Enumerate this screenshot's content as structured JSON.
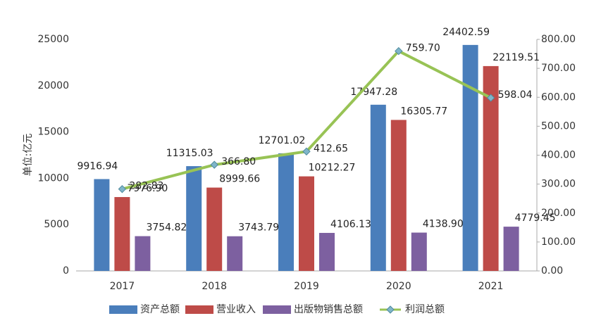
{
  "chart_data": {
    "type": "bar",
    "y_label": "单位:亿元",
    "categories": [
      "2017",
      "2018",
      "2019",
      "2020",
      "2021"
    ],
    "series": [
      {
        "name": "资产总额",
        "color": "#4a7ebb",
        "values": [
          9916.94,
          11315.03,
          12701.02,
          17947.28,
          24402.59
        ],
        "value_labels": [
          "9916.94",
          "11315.03",
          "12701.02",
          "17947.28",
          "24402.59"
        ]
      },
      {
        "name": "营业收入",
        "color": "#be4b48",
        "values": [
          7976.9,
          8999.66,
          10212.27,
          16305.77,
          22119.51
        ],
        "value_labels": [
          "7976.90",
          "8999.66",
          "10212.27",
          "16305.77",
          "22119.51"
        ]
      },
      {
        "name": "出版物销售总额",
        "color": "#7d60a0",
        "values": [
          3754.82,
          3743.79,
          4106.13,
          4138.9,
          4779.45
        ],
        "value_labels": [
          "3754.82",
          "3743.79",
          "4106.13",
          "4138.90",
          "4779.45"
        ]
      },
      {
        "name": "利润总额",
        "color": "#98c355",
        "type": "line",
        "axis": "y2",
        "values": [
          282.83,
          366.8,
          412.65,
          759.7,
          598.04
        ],
        "value_labels": [
          "282.83",
          "366.80",
          "412.65",
          "759.70",
          "598.04"
        ]
      }
    ],
    "ylim": [
      0,
      25000
    ],
    "yticks": [
      0,
      5000,
      10000,
      15000,
      20000,
      25000
    ],
    "y2lim": [
      0,
      800
    ],
    "y2ticks": [
      {
        "value": 0,
        "label": "0.00"
      },
      {
        "value": 100,
        "label": "100.00"
      },
      {
        "value": 200,
        "label": "200.00"
      },
      {
        "value": 300,
        "label": "300.00"
      },
      {
        "value": 400,
        "label": "400.00"
      },
      {
        "value": 500,
        "label": "500.00"
      },
      {
        "value": 600,
        "label": "600.00"
      },
      {
        "value": 700,
        "label": "700.00"
      },
      {
        "value": 800,
        "label": "800.00"
      }
    ],
    "grid": false,
    "legend": "bottom"
  }
}
